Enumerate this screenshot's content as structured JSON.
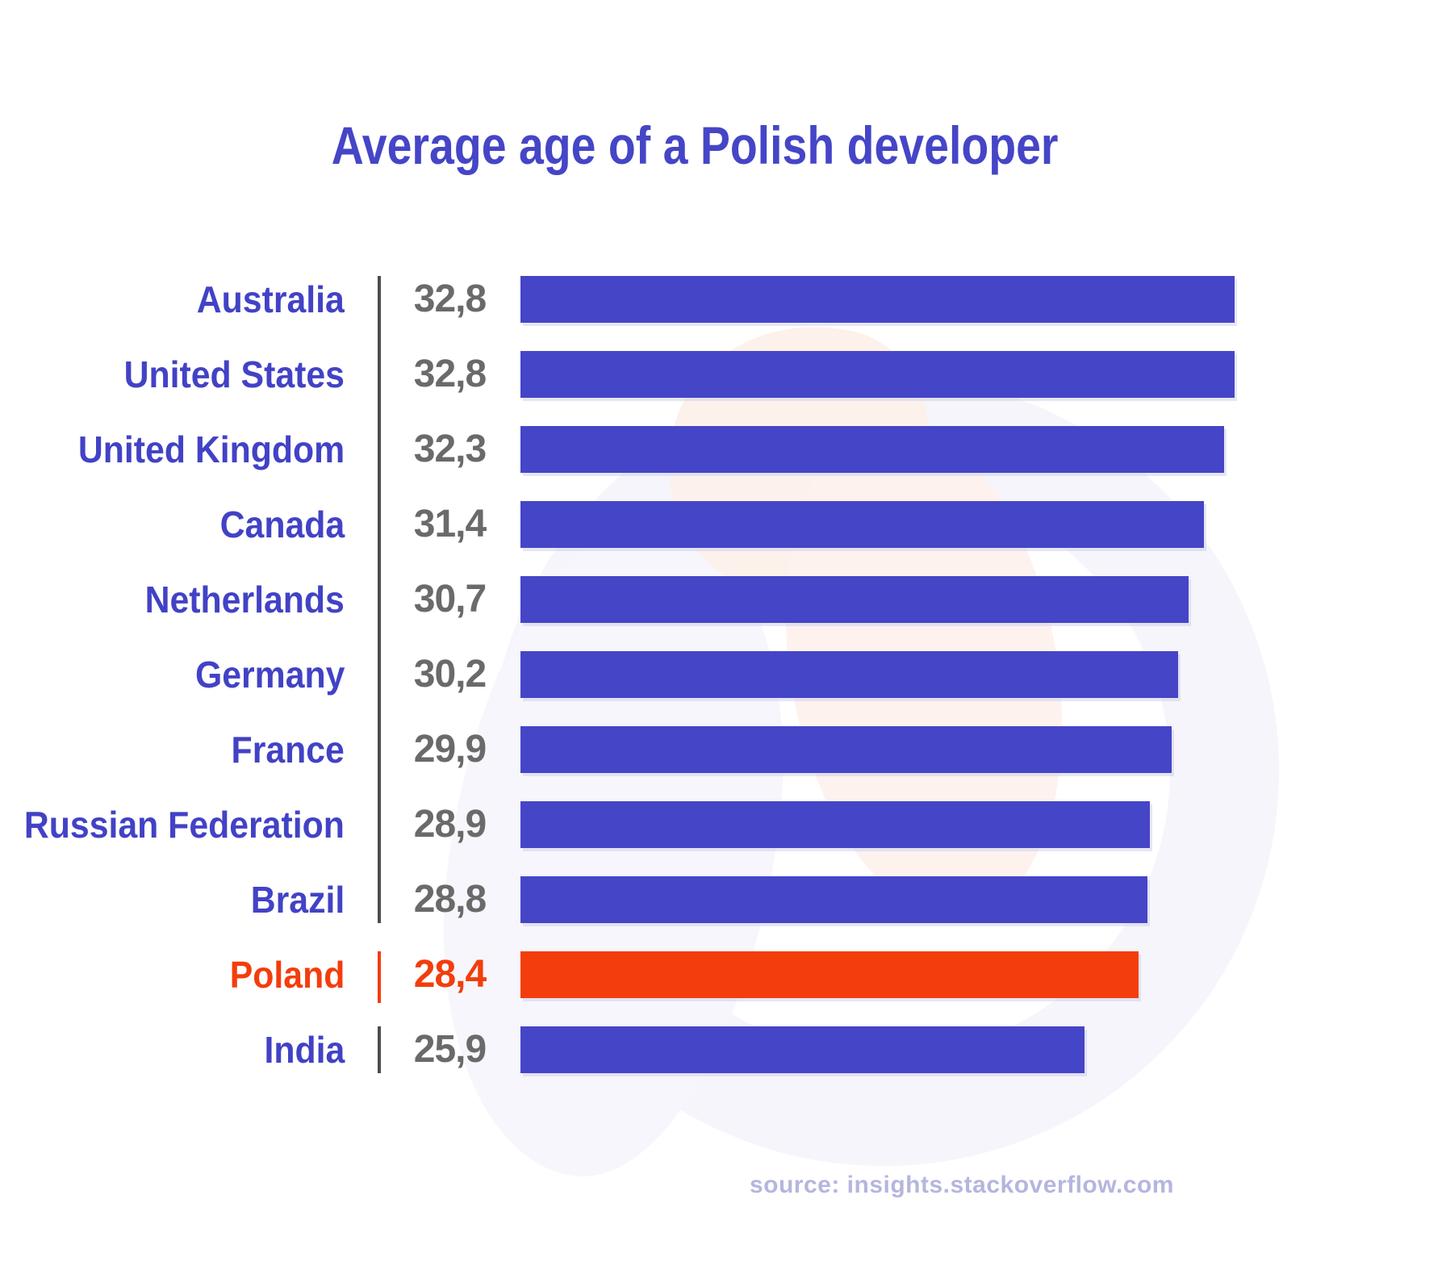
{
  "page": {
    "title": "Average age of a Polish developer",
    "source_note": "source: insights.stackoverflow.com"
  },
  "chart_data": {
    "type": "bar",
    "orientation": "horizontal",
    "title": "Average age of a Polish developer",
    "categories": [
      "Australia",
      "United States",
      "United Kingdom",
      "Canada",
      "Netherlands",
      "Germany",
      "France",
      "Russian Federation",
      "Brazil",
      "Poland",
      "India"
    ],
    "values": [
      32.8,
      32.8,
      32.3,
      31.4,
      30.7,
      30.2,
      29.9,
      28.9,
      28.8,
      28.4,
      25.9
    ],
    "value_labels": [
      "32,8",
      "32,8",
      "32,3",
      "31,4",
      "30,7",
      "30,2",
      "29,9",
      "28,9",
      "28,8",
      "28,4",
      "25,9"
    ],
    "highlight_index": 9,
    "highlight_category": "Poland",
    "xlim": [
      0,
      32.8
    ],
    "grid": false,
    "legend": "none",
    "colors": {
      "bar": "#4545C7",
      "bar_highlight": "#F33D0C",
      "category_label": "#4242C6",
      "category_label_highlight": "#F33D0C",
      "value_label": "#6A6A6A",
      "value_label_highlight": "#F33D0C",
      "divider": "#4D4D4D",
      "divider_highlight": "#F33D0C",
      "title": "#4545C7",
      "source": "#B5B5DF"
    }
  }
}
